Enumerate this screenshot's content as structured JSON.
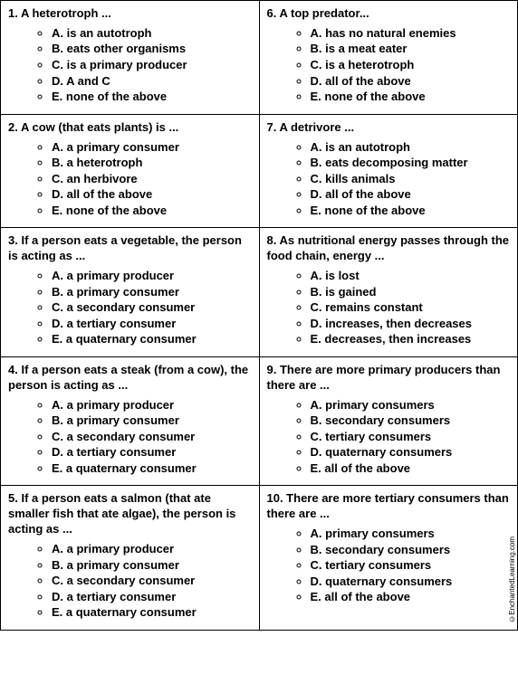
{
  "quiz": {
    "rows": [
      {
        "left": {
          "q": "1. A heterotroph ...",
          "opts": [
            "A. is an autotroph",
            "B. eats other organisms",
            "C. is a primary producer",
            "D. A and C",
            "E. none of the above"
          ]
        },
        "right": {
          "q": "6. A top predator...",
          "opts": [
            "A. has no natural enemies",
            "B. is a meat eater",
            "C. is a heterotroph",
            "D. all of the above",
            "E. none of the above"
          ]
        }
      },
      {
        "left": {
          "q": "2.  A cow (that eats plants) is ...",
          "opts": [
            "A. a primary consumer",
            "B. a heterotroph",
            "C. an herbivore",
            "D. all of the above",
            "E. none of the above"
          ]
        },
        "right": {
          "q": "7. A detrivore ...",
          "opts": [
            "A. is an autotroph",
            "B. eats decomposing matter",
            "C. kills animals",
            "D. all of the above",
            "E. none of the above"
          ]
        }
      },
      {
        "left": {
          "q": "3. If a person eats a vegetable, the person is acting as ...",
          "opts": [
            "A. a primary producer",
            "B. a primary consumer",
            "C. a secondary consumer",
            "D. a tertiary consumer",
            "E. a quaternary consumer"
          ]
        },
        "right": {
          "q": "8. As nutritional energy passes through the food chain, energy ...",
          "opts": [
            "A. is lost",
            "B. is gained",
            "C. remains constant",
            "D. increases, then decreases",
            "E. decreases, then increases"
          ]
        }
      },
      {
        "left": {
          "q": "4. If a person eats a steak (from a cow), the person is acting as ...",
          "opts": [
            "A. a primary producer",
            "B. a primary consumer",
            "C. a secondary consumer",
            "D. a tertiary consumer",
            "E. a quaternary consumer"
          ]
        },
        "right": {
          "q": "9. There are more primary producers than there are ...",
          "opts": [
            "A. primary consumers",
            "B. secondary consumers",
            "C. tertiary consumers",
            "D. quaternary consumers",
            "E. all of the above"
          ]
        }
      },
      {
        "left": {
          "q": "5. If a person eats a salmon (that ate smaller fish that ate algae), the person is acting as  ...",
          "opts": [
            "A. a primary producer",
            "B. a primary consumer",
            "C. a secondary consumer",
            "D. a tertiary consumer",
            "E. a quaternary consumer"
          ]
        },
        "right": {
          "q": "10. There are more tertiary consumers than there are ...",
          "opts": [
            "A. primary consumers",
            "B. secondary consumers",
            "C. tertiary consumers",
            "D. quaternary consumers",
            "E. all of the above"
          ]
        }
      }
    ]
  },
  "credit": "©EnchantedLearning.com",
  "style": {
    "font_family": "Comic Sans MS",
    "font_size_pt": 10,
    "border_color": "#000000",
    "background_color": "#ffffff",
    "text_color": "#000000",
    "list_marker": "circle"
  }
}
